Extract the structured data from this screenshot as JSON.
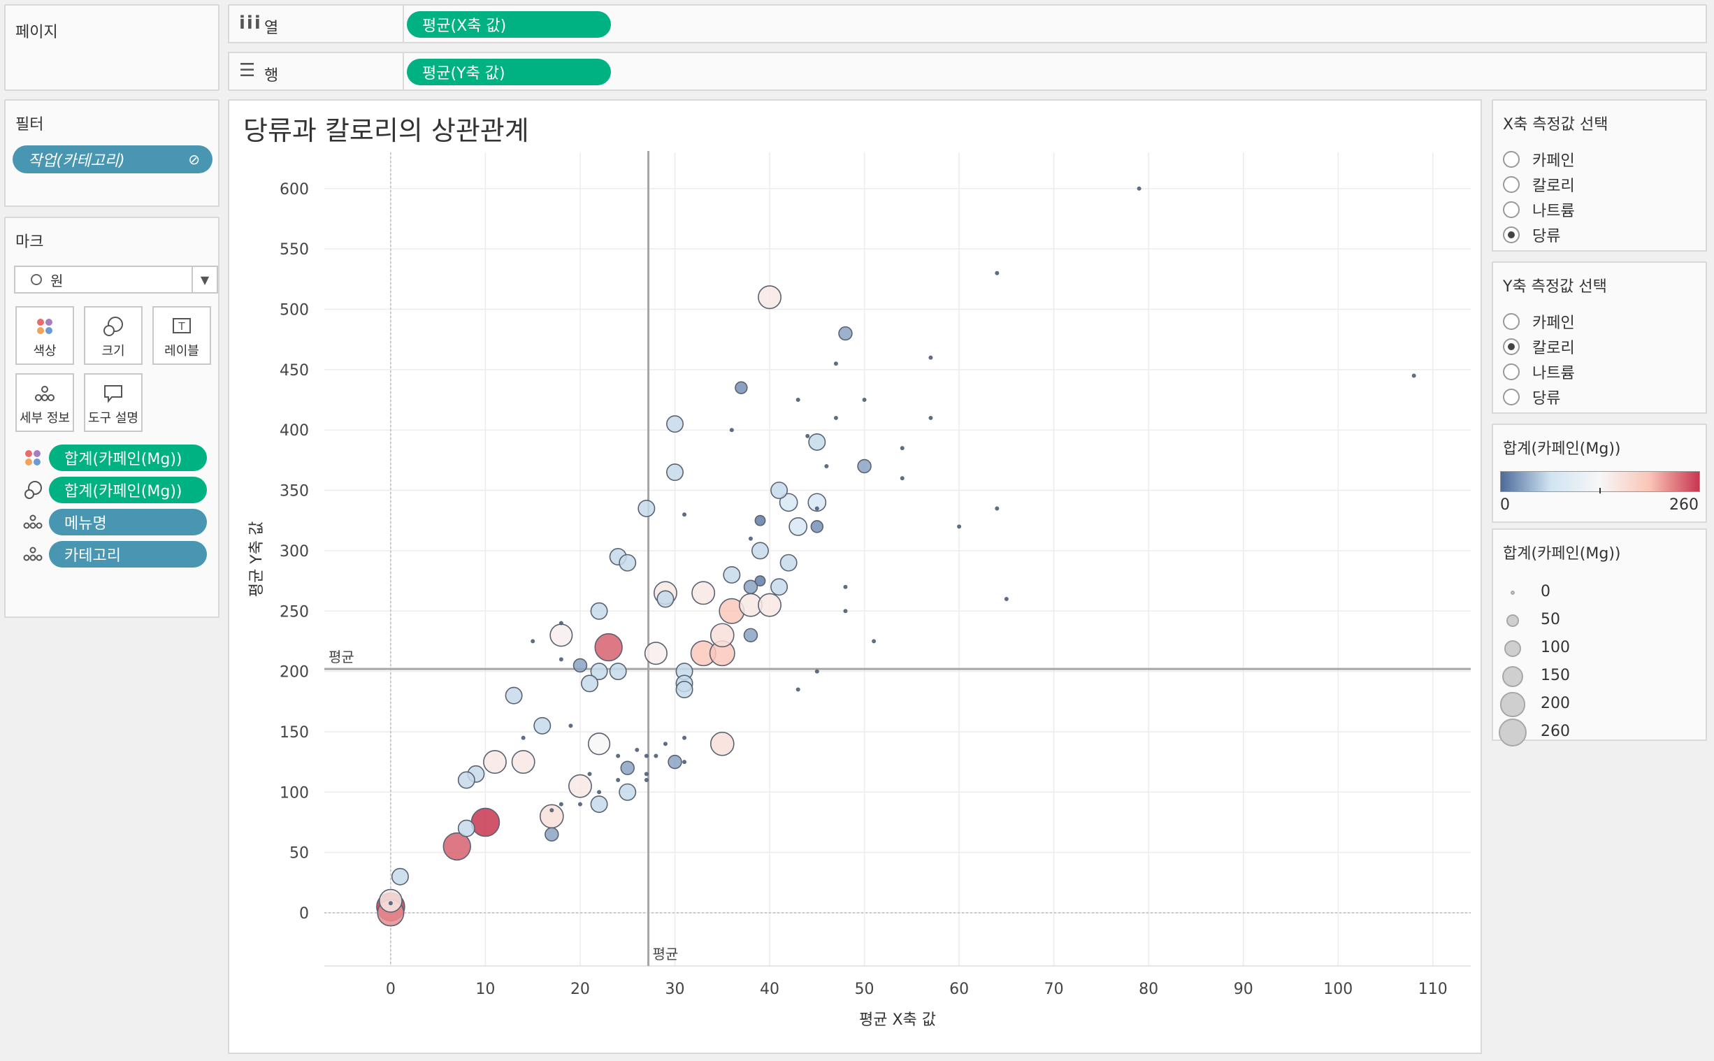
{
  "pages": {
    "title": "페이지"
  },
  "columns_shelf": {
    "label": "열",
    "pill": "평균(X축 값)"
  },
  "rows_shelf": {
    "label": "행",
    "pill": "평균(Y축 값)"
  },
  "filters": {
    "title": "필터",
    "pill": "작업(카테고리)"
  },
  "marks": {
    "title": "마크",
    "mark_type": "원",
    "buttons": [
      "색상",
      "크기",
      "레이블",
      "세부 정보",
      "도구 설명"
    ],
    "fields": [
      {
        "icon": "color-dots-icon",
        "label": "합계(카페인(Mg))"
      },
      {
        "icon": "size-icon",
        "label": "합계(카페인(Mg))"
      },
      {
        "icon": "detail-icon",
        "label": "메뉴명"
      },
      {
        "icon": "detail-icon",
        "label": "카테고리"
      }
    ]
  },
  "x_param": {
    "title": "X축 측정값 선택",
    "options": [
      "카페인",
      "칼로리",
      "나트륨",
      "당류"
    ],
    "selected": 3
  },
  "y_param": {
    "title": "Y축 측정값 선택",
    "options": [
      "카페인",
      "칼로리",
      "나트륨",
      "당류"
    ],
    "selected": 1
  },
  "color_legend": {
    "title": "합계(카페인(Mg))",
    "min_label": "0",
    "max_label": "260",
    "colors": [
      "#4d6b9a",
      "#d0e4f2",
      "#f7f7f7",
      "#fac4b6",
      "#c83650"
    ]
  },
  "size_legend": {
    "title": "합계(카페인(Mg))",
    "values": [
      "0",
      "50",
      "100",
      "150",
      "200",
      "260"
    ]
  },
  "chart_data": {
    "type": "scatter",
    "title": "당류과 칼로리의 상관관계",
    "xlabel": "평균 X축 값",
    "ylabel": "평균 Y축 값",
    "xlim": [
      -7,
      114
    ],
    "ylim": [
      -44,
      630
    ],
    "xticks": [
      "0",
      "10",
      "20",
      "30",
      "40",
      "50",
      "60",
      "70",
      "80",
      "90",
      "100",
      "110"
    ],
    "yticks": [
      "0",
      "50",
      "100",
      "150",
      "200",
      "250",
      "300",
      "350",
      "400",
      "450",
      "500",
      "550",
      "600"
    ],
    "reference_lines": {
      "x_mean": 27.2,
      "y_mean": 202,
      "x_label": "평균",
      "y_label": "평균"
    },
    "grid": true,
    "points": [
      [
        79,
        600,
        0
      ],
      [
        64,
        530,
        0
      ],
      [
        108,
        445,
        0
      ],
      [
        48,
        480,
        30
      ],
      [
        40,
        510,
        150
      ],
      [
        57,
        460,
        0
      ],
      [
        47,
        455,
        0
      ],
      [
        37,
        435,
        20
      ],
      [
        43,
        425,
        0
      ],
      [
        50,
        425,
        0
      ],
      [
        47,
        410,
        0
      ],
      [
        57,
        410,
        0
      ],
      [
        30,
        405,
        60
      ],
      [
        36,
        400,
        0
      ],
      [
        45,
        390,
        60
      ],
      [
        44,
        395,
        0
      ],
      [
        54,
        385,
        0
      ],
      [
        30,
        365,
        60
      ],
      [
        46,
        370,
        0
      ],
      [
        50,
        370,
        30
      ],
      [
        54,
        360,
        0
      ],
      [
        41,
        350,
        60
      ],
      [
        42,
        340,
        75
      ],
      [
        45,
        340,
        75
      ],
      [
        45,
        335,
        0
      ],
      [
        64,
        335,
        0
      ],
      [
        27,
        335,
        60
      ],
      [
        31,
        330,
        0
      ],
      [
        39,
        325,
        10
      ],
      [
        43,
        320,
        75
      ],
      [
        45,
        320,
        20
      ],
      [
        60,
        320,
        0
      ],
      [
        38,
        310,
        0
      ],
      [
        39,
        300,
        60
      ],
      [
        24,
        295,
        60
      ],
      [
        25,
        290,
        60
      ],
      [
        42,
        290,
        60
      ],
      [
        36,
        280,
        60
      ],
      [
        29,
        265,
        150
      ],
      [
        33,
        265,
        150
      ],
      [
        29,
        260,
        60
      ],
      [
        41,
        270,
        60
      ],
      [
        38,
        270,
        30
      ],
      [
        39,
        275,
        10
      ],
      [
        48,
        270,
        0
      ],
      [
        38,
        255,
        150
      ],
      [
        40,
        255,
        150
      ],
      [
        65,
        260,
        0
      ],
      [
        22,
        250,
        60
      ],
      [
        36,
        250,
        190
      ],
      [
        48,
        250,
        0
      ],
      [
        18,
        240,
        0
      ],
      [
        18,
        230,
        140
      ],
      [
        35,
        230,
        160
      ],
      [
        38,
        230,
        30
      ],
      [
        15,
        225,
        0
      ],
      [
        51,
        225,
        0
      ],
      [
        23,
        220,
        240
      ],
      [
        28,
        215,
        140
      ],
      [
        33,
        215,
        190
      ],
      [
        35,
        215,
        190
      ],
      [
        18,
        210,
        0
      ],
      [
        20,
        205,
        30
      ],
      [
        22,
        200,
        60
      ],
      [
        24,
        200,
        60
      ],
      [
        31,
        200,
        60
      ],
      [
        45,
        200,
        0
      ],
      [
        21,
        190,
        60
      ],
      [
        31,
        190,
        60
      ],
      [
        31,
        185,
        60
      ],
      [
        43,
        185,
        0
      ],
      [
        13,
        180,
        60
      ],
      [
        16,
        155,
        60
      ],
      [
        19,
        155,
        0
      ],
      [
        14,
        145,
        0
      ],
      [
        31,
        145,
        0
      ],
      [
        22,
        140,
        130
      ],
      [
        35,
        140,
        160
      ],
      [
        26,
        135,
        0
      ],
      [
        29,
        140,
        0
      ],
      [
        24,
        130,
        0
      ],
      [
        11,
        125,
        150
      ],
      [
        14,
        125,
        150
      ],
      [
        31,
        125,
        0
      ],
      [
        25,
        120,
        30
      ],
      [
        30,
        125,
        30
      ],
      [
        9,
        115,
        60
      ],
      [
        21,
        115,
        0
      ],
      [
        24,
        110,
        0
      ],
      [
        8,
        110,
        60
      ],
      [
        27,
        110,
        0
      ],
      [
        27,
        115,
        0
      ],
      [
        27,
        130,
        0
      ],
      [
        28,
        130,
        0
      ],
      [
        20,
        105,
        150
      ],
      [
        22,
        100,
        0
      ],
      [
        25,
        100,
        60
      ],
      [
        18,
        90,
        0
      ],
      [
        20,
        90,
        0
      ],
      [
        22,
        90,
        60
      ],
      [
        17,
        80,
        160
      ],
      [
        17,
        85,
        0
      ],
      [
        10,
        75,
        260
      ],
      [
        8,
        70,
        60
      ],
      [
        17,
        65,
        30
      ],
      [
        7,
        55,
        240
      ],
      [
        1,
        30,
        60
      ],
      [
        0,
        10,
        150
      ],
      [
        0,
        5,
        260
      ],
      [
        0,
        0,
        220
      ],
      [
        0,
        8,
        0
      ]
    ]
  }
}
